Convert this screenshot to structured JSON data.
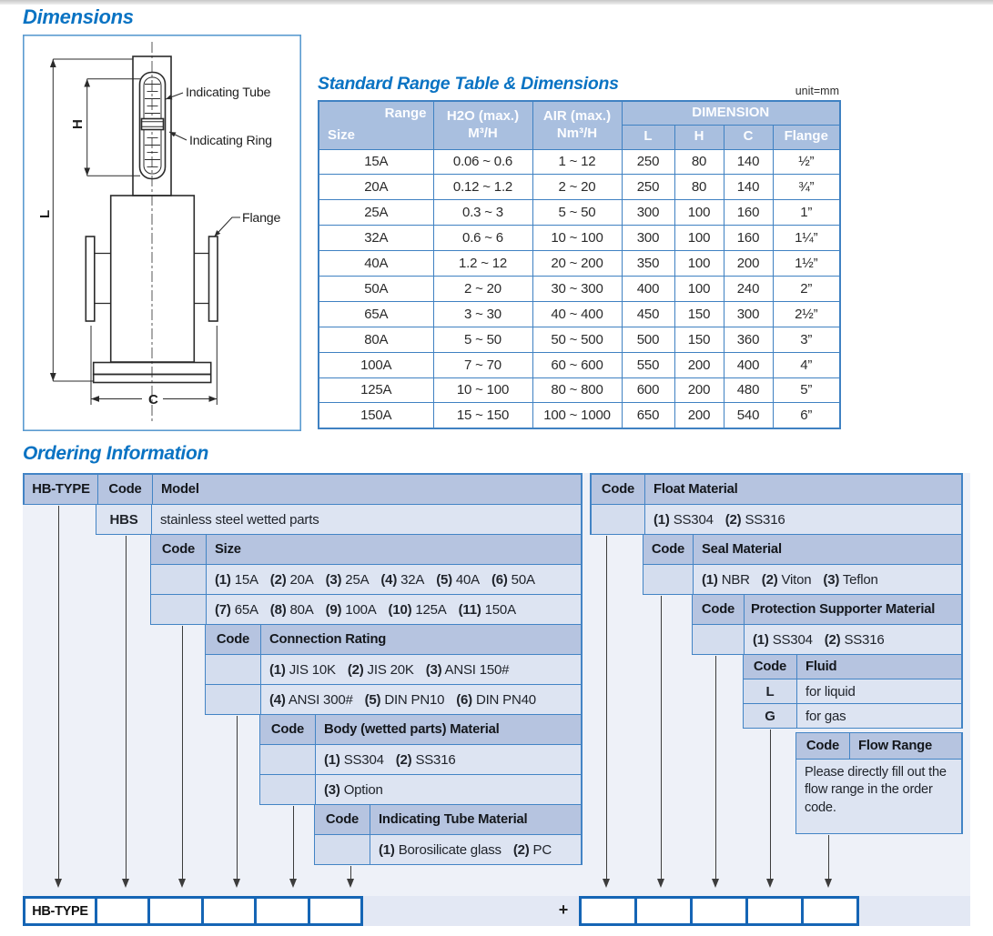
{
  "dimensions": {
    "title": "Dimensions",
    "labels": {
      "tube": "Indicating Tube",
      "ring": "Indicating Ring",
      "flange": "Flange",
      "h": "H",
      "l": "L",
      "c": "C"
    }
  },
  "range_table": {
    "title": "Standard Range Table & Dimensions",
    "unit": "unit=mm",
    "header": {
      "corner_top": "Range",
      "corner_bottom": "Size",
      "h2o_line1": "H2O (max.)",
      "h2o_line2": "M³/H",
      "air_line1": "AIR (max.)",
      "air_line2": "Nm³/H",
      "dimension": "DIMENSION",
      "l": "L",
      "h": "H",
      "c": "C",
      "flange": "Flange"
    },
    "rows": [
      {
        "size": "15A",
        "h2o": "0.06 ~ 0.6",
        "air": "1 ~ 12",
        "l": "250",
        "h": "80",
        "c": "140",
        "flange": "½”"
      },
      {
        "size": "20A",
        "h2o": "0.12 ~ 1.2",
        "air": "2 ~ 20",
        "l": "250",
        "h": "80",
        "c": "140",
        "flange": "¾”"
      },
      {
        "size": "25A",
        "h2o": "0.3 ~ 3",
        "air": "5 ~ 50",
        "l": "300",
        "h": "100",
        "c": "160",
        "flange": "1”"
      },
      {
        "size": "32A",
        "h2o": "0.6 ~ 6",
        "air": "10 ~ 100",
        "l": "300",
        "h": "100",
        "c": "160",
        "flange": "1¼”"
      },
      {
        "size": "40A",
        "h2o": "1.2 ~ 12",
        "air": "20 ~ 200",
        "l": "350",
        "h": "100",
        "c": "200",
        "flange": "1½”"
      },
      {
        "size": "50A",
        "h2o": "2 ~ 20",
        "air": "30 ~ 300",
        "l": "400",
        "h": "100",
        "c": "240",
        "flange": "2”"
      },
      {
        "size": "65A",
        "h2o": "3 ~ 30",
        "air": "40 ~ 400",
        "l": "450",
        "h": "150",
        "c": "300",
        "flange": "2½”"
      },
      {
        "size": "80A",
        "h2o": "5 ~ 50",
        "air": "50 ~ 500",
        "l": "500",
        "h": "150",
        "c": "360",
        "flange": "3”"
      },
      {
        "size": "100A",
        "h2o": "7 ~ 70",
        "air": "60 ~ 600",
        "l": "550",
        "h": "200",
        "c": "400",
        "flange": "4”"
      },
      {
        "size": "125A",
        "h2o": "10 ~ 100",
        "air": "80 ~ 800",
        "l": "600",
        "h": "200",
        "c": "480",
        "flange": "5”"
      },
      {
        "size": "150A",
        "h2o": "15 ~ 150",
        "air": "100 ~ 1000",
        "l": "650",
        "h": "200",
        "c": "540",
        "flange": "6”"
      }
    ]
  },
  "ordering": {
    "title": "Ordering Information",
    "type_label": "HB-TYPE",
    "code_label": "Code",
    "left": {
      "model": {
        "header": "Model",
        "code": "HBS",
        "desc": "stainless steel wetted parts"
      },
      "size": {
        "header": "Size",
        "options1": [
          {
            "c": "(1)",
            "t": "15A"
          },
          {
            "c": "(2)",
            "t": "20A"
          },
          {
            "c": "(3)",
            "t": "25A"
          },
          {
            "c": "(4)",
            "t": "32A"
          },
          {
            "c": "(5)",
            "t": "40A"
          },
          {
            "c": "(6)",
            "t": "50A"
          }
        ],
        "options2": [
          {
            "c": "(7)",
            "t": "65A"
          },
          {
            "c": "(8)",
            "t": "80A"
          },
          {
            "c": "(9)",
            "t": "100A"
          },
          {
            "c": "(10)",
            "t": "125A"
          },
          {
            "c": "(11)",
            "t": "150A"
          }
        ]
      },
      "connection": {
        "header": "Connection Rating",
        "options1": [
          {
            "c": "(1)",
            "t": "JIS 10K"
          },
          {
            "c": "(2)",
            "t": "JIS 20K"
          },
          {
            "c": "(3)",
            "t": "ANSI 150#"
          }
        ],
        "options2": [
          {
            "c": "(4)",
            "t": "ANSI 300#"
          },
          {
            "c": "(5)",
            "t": "DIN PN10"
          },
          {
            "c": "(6)",
            "t": "DIN PN40"
          }
        ]
      },
      "body": {
        "header": "Body (wetted parts) Material",
        "options1": [
          {
            "c": "(1)",
            "t": "SS304"
          },
          {
            "c": "(2)",
            "t": "SS316"
          }
        ],
        "options2": [
          {
            "c": "(3)",
            "t": "Option"
          }
        ]
      },
      "tube": {
        "header": "Indicating Tube Material",
        "options1": [
          {
            "c": "(1)",
            "t": "Borosilicate glass"
          },
          {
            "c": "(2)",
            "t": "PC"
          }
        ]
      }
    },
    "right": {
      "float": {
        "header": "Float Material",
        "options": [
          {
            "c": "(1)",
            "t": "SS304"
          },
          {
            "c": "(2)",
            "t": "SS316"
          }
        ]
      },
      "seal": {
        "header": "Seal Material",
        "options": [
          {
            "c": "(1)",
            "t": "NBR"
          },
          {
            "c": "(2)",
            "t": "Viton"
          },
          {
            "c": "(3)",
            "t": "Teflon"
          }
        ]
      },
      "protection": {
        "header": "Protection Supporter Material",
        "options": [
          {
            "c": "(1)",
            "t": "SS304"
          },
          {
            "c": "(2)",
            "t": "SS316"
          }
        ]
      },
      "fluid": {
        "header": "Fluid",
        "rows": [
          {
            "code": "L",
            "label": "for liquid"
          },
          {
            "code": "G",
            "label": "for gas"
          }
        ]
      },
      "flow": {
        "header": "Flow Range",
        "note": "Please directly fill out the flow range in the order code."
      }
    },
    "footer": {
      "type_label": "HB-TYPE",
      "plus": "+"
    }
  },
  "colors": {
    "accent_blue": "#0a73c3",
    "table_border": "#3f81c2",
    "header_fill": "#b6c4e0",
    "row_fill": "#dde4f2",
    "range_header_fill": "#a9bfdf",
    "box_border": "#1565b5"
  }
}
